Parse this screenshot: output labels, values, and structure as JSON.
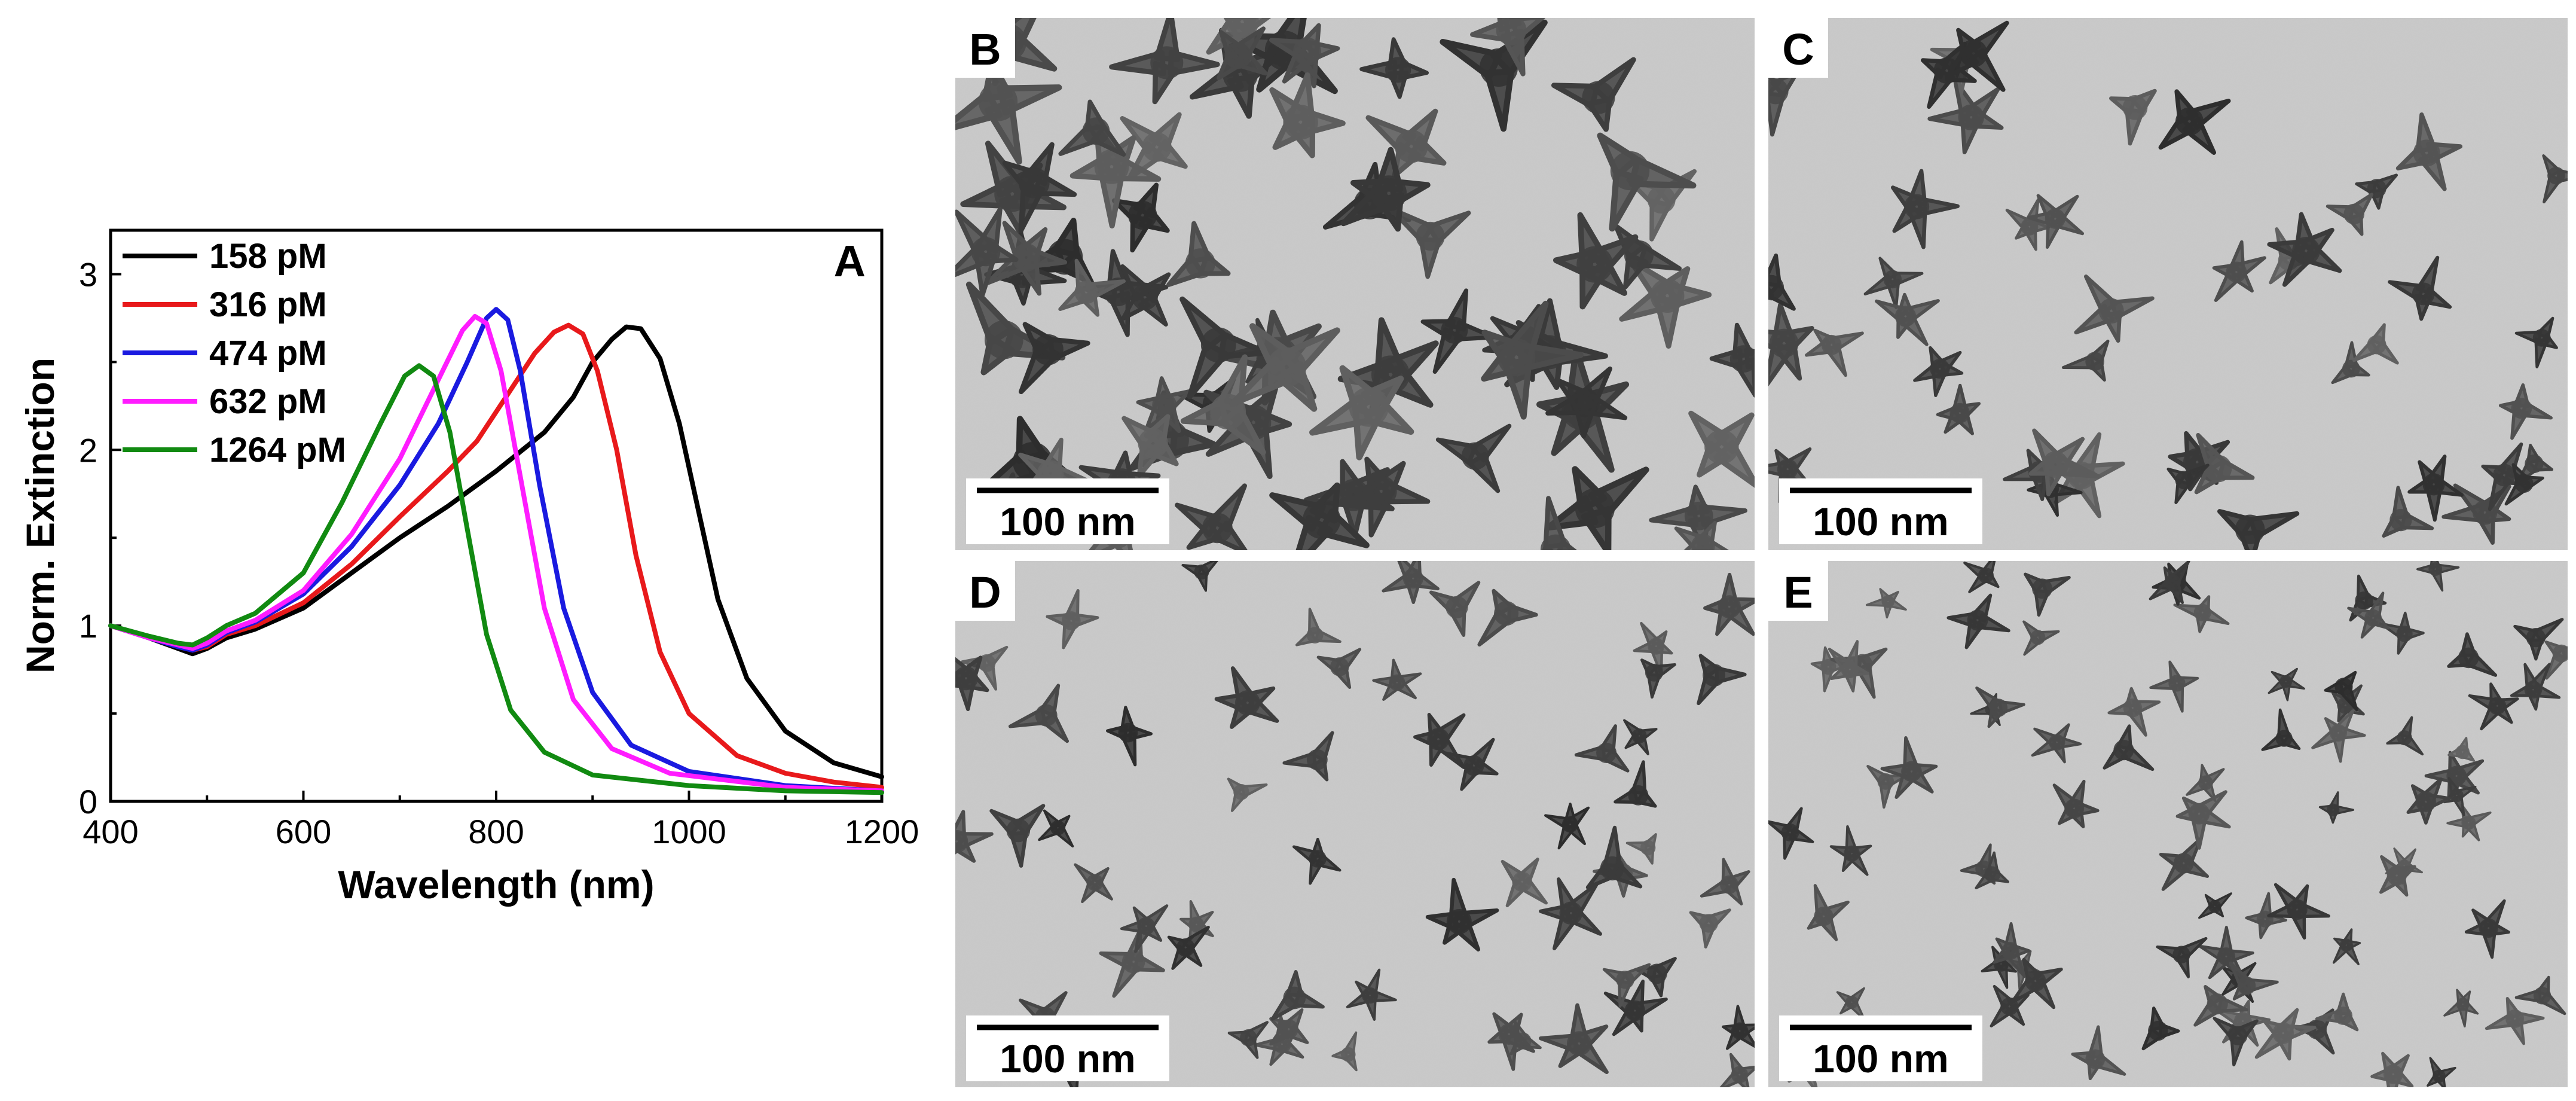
{
  "chart_data": {
    "type": "line",
    "panel_label": "A",
    "xlabel": "Wavelength (nm)",
    "ylabel": "Norm. Extinction",
    "xlim": [
      400,
      1200
    ],
    "ylim": [
      0,
      3.25
    ],
    "xticks": [
      400,
      600,
      800,
      1000,
      1200
    ],
    "yticks": [
      0,
      1,
      2,
      3
    ],
    "grid": false,
    "legend_position": "top-left",
    "series": [
      {
        "name": "158 pM",
        "color": "#000000",
        "points": [
          [
            400,
            1.0
          ],
          [
            440,
            0.93
          ],
          [
            470,
            0.87
          ],
          [
            485,
            0.84
          ],
          [
            500,
            0.87
          ],
          [
            520,
            0.93
          ],
          [
            550,
            0.98
          ],
          [
            600,
            1.1
          ],
          [
            650,
            1.3
          ],
          [
            700,
            1.5
          ],
          [
            750,
            1.68
          ],
          [
            800,
            1.88
          ],
          [
            850,
            2.1
          ],
          [
            880,
            2.3
          ],
          [
            900,
            2.5
          ],
          [
            920,
            2.63
          ],
          [
            935,
            2.7
          ],
          [
            950,
            2.69
          ],
          [
            970,
            2.52
          ],
          [
            990,
            2.15
          ],
          [
            1010,
            1.65
          ],
          [
            1030,
            1.15
          ],
          [
            1060,
            0.7
          ],
          [
            1100,
            0.4
          ],
          [
            1150,
            0.22
          ],
          [
            1200,
            0.14
          ]
        ]
      },
      {
        "name": "316 pM",
        "color": "#e8191b",
        "points": [
          [
            400,
            1.0
          ],
          [
            440,
            0.93
          ],
          [
            470,
            0.88
          ],
          [
            485,
            0.86
          ],
          [
            500,
            0.88
          ],
          [
            520,
            0.95
          ],
          [
            550,
            1.0
          ],
          [
            600,
            1.13
          ],
          [
            650,
            1.35
          ],
          [
            700,
            1.62
          ],
          [
            750,
            1.88
          ],
          [
            780,
            2.05
          ],
          [
            810,
            2.3
          ],
          [
            840,
            2.55
          ],
          [
            860,
            2.67
          ],
          [
            875,
            2.71
          ],
          [
            890,
            2.66
          ],
          [
            905,
            2.45
          ],
          [
            925,
            2.0
          ],
          [
            945,
            1.4
          ],
          [
            970,
            0.85
          ],
          [
            1000,
            0.5
          ],
          [
            1050,
            0.26
          ],
          [
            1100,
            0.16
          ],
          [
            1150,
            0.11
          ],
          [
            1200,
            0.08
          ]
        ]
      },
      {
        "name": "474 pM",
        "color": "#1a1ae0",
        "points": [
          [
            400,
            1.0
          ],
          [
            440,
            0.93
          ],
          [
            470,
            0.88
          ],
          [
            485,
            0.86
          ],
          [
            500,
            0.89
          ],
          [
            520,
            0.96
          ],
          [
            550,
            1.02
          ],
          [
            600,
            1.18
          ],
          [
            650,
            1.45
          ],
          [
            700,
            1.8
          ],
          [
            740,
            2.15
          ],
          [
            770,
            2.5
          ],
          [
            790,
            2.75
          ],
          [
            800,
            2.8
          ],
          [
            812,
            2.74
          ],
          [
            825,
            2.45
          ],
          [
            845,
            1.8
          ],
          [
            870,
            1.1
          ],
          [
            900,
            0.62
          ],
          [
            940,
            0.32
          ],
          [
            1000,
            0.17
          ],
          [
            1100,
            0.09
          ],
          [
            1200,
            0.06
          ]
        ]
      },
      {
        "name": "632 pM",
        "color": "#ff1cff",
        "points": [
          [
            400,
            1.0
          ],
          [
            440,
            0.93
          ],
          [
            470,
            0.89
          ],
          [
            485,
            0.87
          ],
          [
            500,
            0.9
          ],
          [
            520,
            0.97
          ],
          [
            550,
            1.03
          ],
          [
            600,
            1.2
          ],
          [
            650,
            1.52
          ],
          [
            700,
            1.95
          ],
          [
            740,
            2.4
          ],
          [
            765,
            2.68
          ],
          [
            778,
            2.76
          ],
          [
            790,
            2.72
          ],
          [
            805,
            2.45
          ],
          [
            825,
            1.85
          ],
          [
            850,
            1.1
          ],
          [
            880,
            0.58
          ],
          [
            920,
            0.3
          ],
          [
            980,
            0.16
          ],
          [
            1100,
            0.08
          ],
          [
            1200,
            0.06
          ]
        ]
      },
      {
        "name": "1264 pM",
        "color": "#118a11",
        "points": [
          [
            400,
            1.0
          ],
          [
            440,
            0.94
          ],
          [
            470,
            0.9
          ],
          [
            485,
            0.89
          ],
          [
            500,
            0.93
          ],
          [
            520,
            1.0
          ],
          [
            550,
            1.07
          ],
          [
            600,
            1.3
          ],
          [
            640,
            1.7
          ],
          [
            680,
            2.15
          ],
          [
            705,
            2.42
          ],
          [
            720,
            2.48
          ],
          [
            735,
            2.42
          ],
          [
            752,
            2.1
          ],
          [
            770,
            1.55
          ],
          [
            790,
            0.95
          ],
          [
            815,
            0.52
          ],
          [
            850,
            0.28
          ],
          [
            900,
            0.15
          ],
          [
            1000,
            0.09
          ],
          [
            1100,
            0.06
          ],
          [
            1200,
            0.05
          ]
        ]
      }
    ]
  },
  "micrographs": [
    {
      "letter": "B",
      "scale_bar": "100 nm"
    },
    {
      "letter": "C",
      "scale_bar": "100 nm"
    },
    {
      "letter": "D",
      "scale_bar": "100 nm"
    },
    {
      "letter": "E",
      "scale_bar": "100 nm"
    }
  ]
}
